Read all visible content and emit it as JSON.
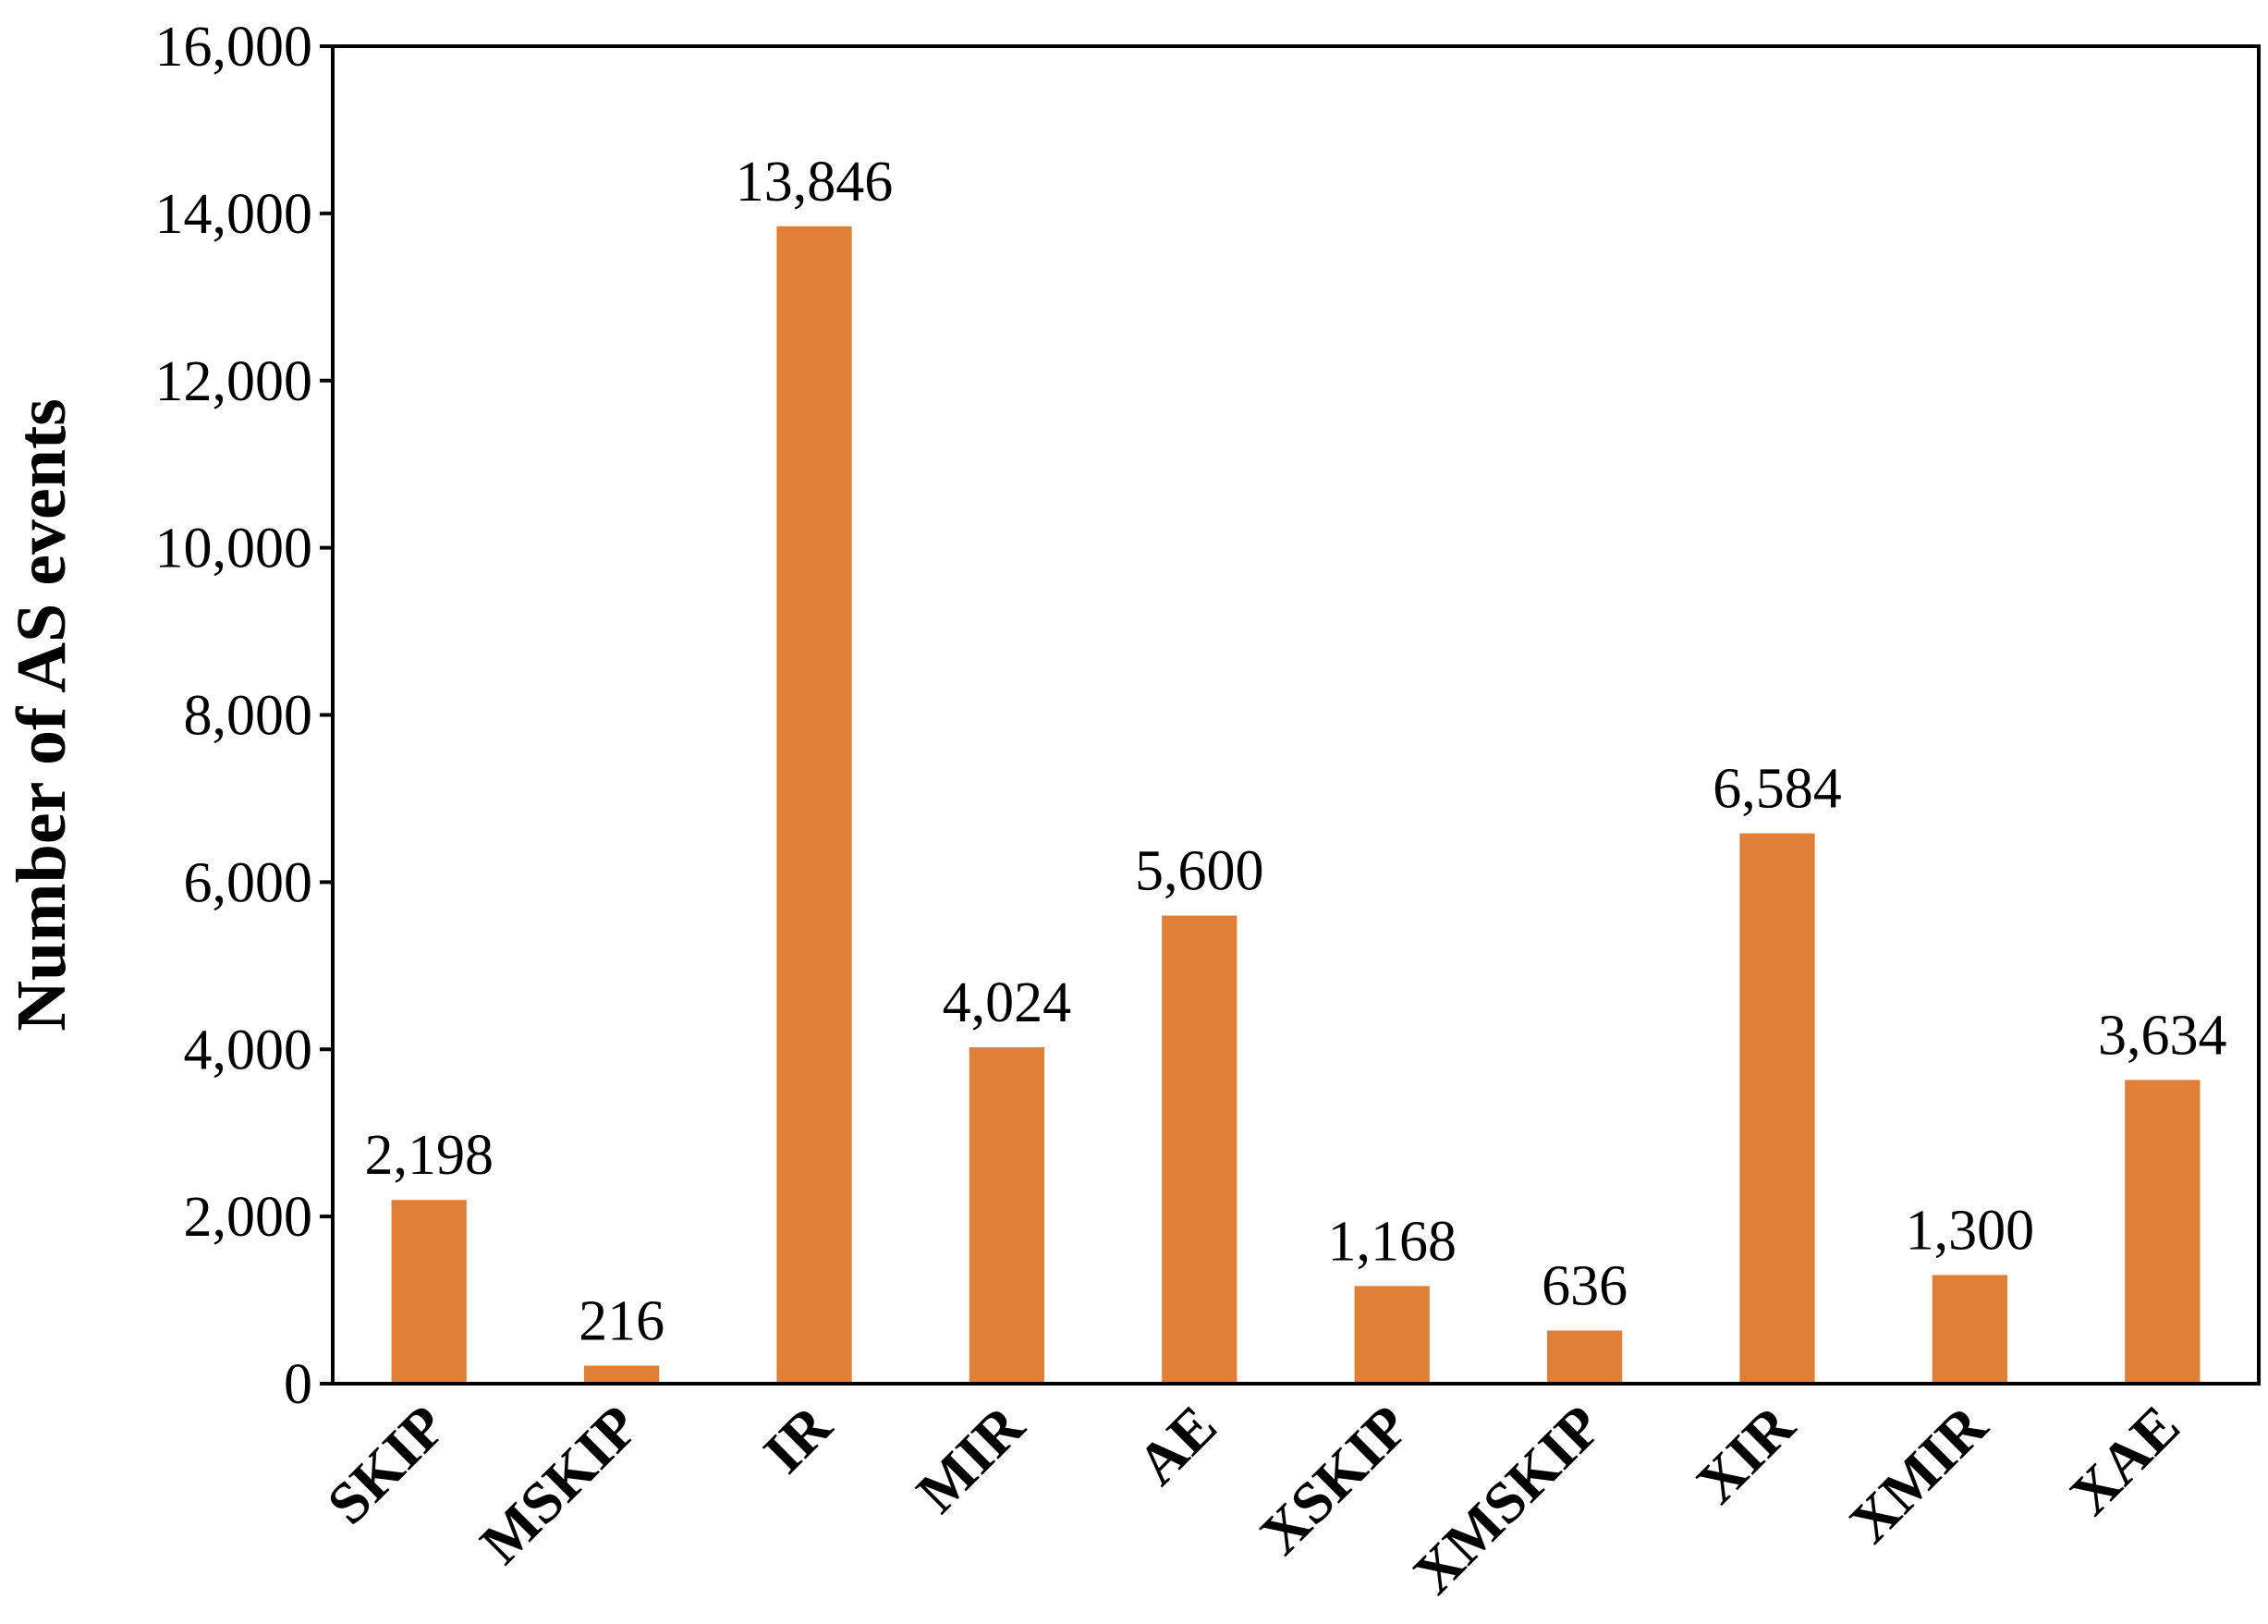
{
  "chart_data": {
    "type": "bar",
    "categories": [
      "SKIP",
      "MSKIP",
      "IR",
      "MIR",
      "AE",
      "XSKIP",
      "XMSKIP",
      "XIR",
      "XMIR",
      "XAE"
    ],
    "values": [
      2198,
      216,
      13846,
      4024,
      5600,
      1168,
      636,
      6584,
      1300,
      3634
    ],
    "data_labels": [
      "2,198",
      "216",
      "13,846",
      "4,024",
      "5,600",
      "1,168",
      "636",
      "6,584",
      "1,300",
      "3,634"
    ],
    "ylabel": "Number of AS events",
    "xlabel": "",
    "ylim": [
      0,
      16000
    ],
    "yticks": [
      0,
      2000,
      4000,
      6000,
      8000,
      10000,
      12000,
      14000,
      16000
    ],
    "ytick_labels": [
      "0",
      "2,000",
      "4,000",
      "6,000",
      "8,000",
      "10,000",
      "12,000",
      "14,000",
      "16,000"
    ],
    "bar_color": "#E07F37",
    "grid": false,
    "legend": "none"
  }
}
